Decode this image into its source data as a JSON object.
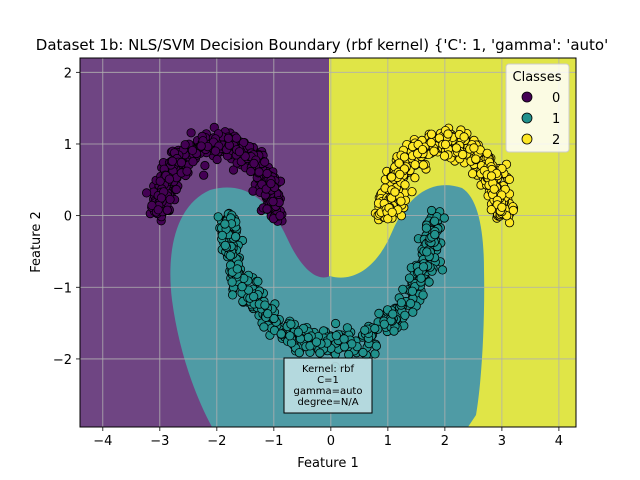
{
  "chart_data": {
    "type": "scatter",
    "title": "Dataset 1b: NLS/SVM Decision Boundary (rbf kernel) {'C': 1, 'gamma': 'auto'",
    "xlabel": "Feature 1",
    "ylabel": "Feature 2",
    "xlim": [
      -4.4,
      4.3
    ],
    "ylim": [
      -2.95,
      2.2
    ],
    "xticks": [
      -4,
      -3,
      -2,
      -1,
      0,
      1,
      2,
      3,
      4
    ],
    "yticks": [
      2,
      1,
      0,
      -1,
      -2
    ],
    "xtick_labels": [
      "−4",
      "−3",
      "−2",
      "−1",
      "0",
      "1",
      "2",
      "3",
      "4"
    ],
    "ytick_labels": [
      "2",
      "1",
      "0",
      "−1",
      "−2"
    ],
    "grid": true,
    "legend": {
      "title": "Classes",
      "placement": "top-right",
      "entries": [
        {
          "label": "0",
          "color": "#440154"
        },
        {
          "label": "1",
          "color": "#21918c"
        },
        {
          "label": "2",
          "color": "#fde725"
        }
      ]
    },
    "region_colors": {
      "0": "#6f4583",
      "1": "#4f9ba5",
      "2": "#e0e547"
    },
    "series": [
      {
        "name": "0",
        "shape": "upper arc",
        "center": [
          -2,
          0
        ],
        "radius": 1.0,
        "angle_range_deg": [
          0,
          180
        ],
        "count": 500,
        "color": "#440154"
      },
      {
        "name": "1",
        "shape": "lower arc",
        "center": [
          0,
          0
        ],
        "radius": 1.8,
        "angle_range_deg": [
          180,
          360
        ],
        "count": 500,
        "color": "#21918c"
      },
      {
        "name": "2",
        "shape": "upper arc",
        "center": [
          2,
          0
        ],
        "radius": 1.0,
        "angle_range_deg": [
          0,
          180
        ],
        "count": 500,
        "color": "#fde725"
      }
    ],
    "annotation": {
      "lines": [
        "Kernel: rbf",
        "C=1",
        "gamma=auto",
        "degree=N/A"
      ]
    }
  }
}
